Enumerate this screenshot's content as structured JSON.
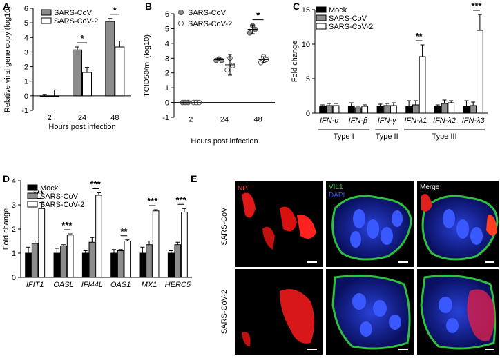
{
  "panels": {
    "A": "A",
    "B": "B",
    "C": "C",
    "D": "D",
    "E": "E"
  },
  "chart_data": [
    {
      "panel": "A",
      "type": "bar",
      "ylabel": "Relative viral gene copy (log10)",
      "xlabel": "Hours post infection",
      "categories": [
        "2",
        "24",
        "48"
      ],
      "ylim": [
        -1,
        6
      ],
      "yticks": [
        "-1",
        "0",
        "1",
        "2",
        "3",
        "4",
        "5",
        "6"
      ],
      "series": [
        {
          "name": "SARS-CoV",
          "values": [
            0.0,
            3.15,
            5.1
          ],
          "err": [
            0.1,
            0.2,
            0.2
          ],
          "color": "#8c8c8c"
        },
        {
          "name": "SARS-CoV-2",
          "values": [
            0.0,
            1.6,
            3.35
          ],
          "err": [
            0.4,
            0.35,
            0.4
          ],
          "color": "#ffffff"
        }
      ],
      "significance": [
        {
          "group": 1,
          "label": "*"
        },
        {
          "group": 2,
          "label": "*"
        }
      ]
    },
    {
      "panel": "B",
      "type": "scatter",
      "ylabel": "TCID50/ml (log10)",
      "xlabel": "Hours post infection",
      "categories": [
        "2",
        "24",
        "48"
      ],
      "ylim": [
        -1,
        6
      ],
      "yticks": [
        "-1",
        "0",
        "1",
        "2",
        "3",
        "4",
        "5",
        "6"
      ],
      "series": [
        {
          "name": "SARS-CoV",
          "fill": "#8c8c8c",
          "points": [
            [
              0,
              0
            ],
            [
              0,
              0
            ],
            [
              0,
              0
            ],
            [
              1,
              2.85
            ],
            [
              1,
              2.95
            ],
            [
              1,
              2.85
            ],
            [
              2,
              4.7
            ],
            [
              2,
              5.2
            ],
            [
              2,
              4.95
            ]
          ],
          "means": [
            0,
            2.9,
            4.95
          ],
          "err": [
            0,
            0.1,
            0.3
          ]
        },
        {
          "name": "SARS-CoV-2",
          "fill": "#ffffff",
          "points": [
            [
              0,
              0
            ],
            [
              0,
              0
            ],
            [
              0,
              0
            ],
            [
              1,
              2.2
            ],
            [
              1,
              3.0
            ],
            [
              1,
              2.5
            ],
            [
              2,
              2.7
            ],
            [
              2,
              3.1
            ],
            [
              2,
              2.9
            ]
          ],
          "means": [
            0,
            2.55,
            2.9
          ],
          "err": [
            0,
            0.7,
            0.2
          ]
        }
      ],
      "significance": [
        {
          "group": 2,
          "label": "*"
        }
      ]
    },
    {
      "panel": "C",
      "type": "bar",
      "ylabel": "Fold change",
      "categories": [
        "IFN-α",
        "IFN-β",
        "IFN-γ",
        "IFN-λ1",
        "IFN-λ2",
        "IFN-λ3"
      ],
      "groups": [
        {
          "label": "Type I",
          "from": 0,
          "to": 1
        },
        {
          "label": "Type II",
          "from": 2,
          "to": 2
        },
        {
          "label": "Type III",
          "from": 3,
          "to": 5
        }
      ],
      "ylim": [
        0,
        15
      ],
      "yticks": [
        "0",
        "5",
        "10",
        "15"
      ],
      "series": [
        {
          "name": "Mock",
          "values": [
            1.0,
            1.0,
            1.0,
            1.0,
            1.0,
            1.0
          ],
          "err": [
            0.2,
            0.5,
            0.3,
            0.8,
            0.2,
            0.8
          ],
          "color": "#000000"
        },
        {
          "name": "SARS-CoV",
          "values": [
            1.1,
            0.8,
            1.1,
            1.2,
            1.4,
            1.1
          ],
          "err": [
            0.3,
            0.2,
            0.3,
            0.6,
            0.5,
            0.5
          ],
          "color": "#8c8c8c"
        },
        {
          "name": "SARS-CoV-2",
          "values": [
            1.1,
            1.0,
            1.1,
            8.2,
            1.5,
            12.0
          ],
          "err": [
            0.3,
            0.2,
            0.4,
            1.7,
            0.3,
            2.3
          ],
          "color": "#ffffff"
        }
      ],
      "significance": [
        {
          "group": 3,
          "label": "**"
        },
        {
          "group": 5,
          "label": "***"
        }
      ]
    },
    {
      "panel": "D",
      "type": "bar",
      "ylabel": "Fold change",
      "categories": [
        "IFIT1",
        "OASL",
        "IFI44L",
        "OAS1",
        "MX1",
        "HERC5"
      ],
      "ylim": [
        0,
        4
      ],
      "yticks": [
        "0",
        "1",
        "2",
        "3",
        "4"
      ],
      "series": [
        {
          "name": "Mock",
          "values": [
            1.0,
            1.0,
            1.0,
            1.0,
            1.0,
            1.0
          ],
          "err": [
            0.25,
            0.2,
            0.1,
            0.15,
            0.25,
            0.1
          ],
          "color": "#000000"
        },
        {
          "name": "SARS-CoV",
          "values": [
            1.4,
            1.3,
            1.45,
            1.1,
            1.35,
            1.35
          ],
          "err": [
            0.1,
            0.05,
            0.2,
            0.05,
            0.15,
            0.1
          ],
          "color": "#8c8c8c"
        },
        {
          "name": "SARS-CoV-2",
          "values": [
            2.85,
            1.75,
            3.4,
            1.5,
            2.75,
            2.7
          ],
          "err": [
            0.25,
            0.05,
            0.1,
            0.05,
            0.05,
            0.15
          ],
          "color": "#ffffff"
        }
      ],
      "significance": [
        {
          "group": 0,
          "label": "***"
        },
        {
          "group": 1,
          "label": "***"
        },
        {
          "group": 2,
          "label": "***"
        },
        {
          "group": 3,
          "label": "**"
        },
        {
          "group": 4,
          "label": "***"
        },
        {
          "group": 5,
          "label": "***"
        }
      ]
    }
  ],
  "microscopy": {
    "columns": [
      "NP",
      "VIL1",
      "DAPI",
      "Merge"
    ],
    "rows": [
      "SARS-CoV",
      "SARS-CoV-2"
    ],
    "colors": {
      "np": "#ff2020",
      "vil1": "#30d040",
      "dapi": "#3050ff"
    }
  }
}
